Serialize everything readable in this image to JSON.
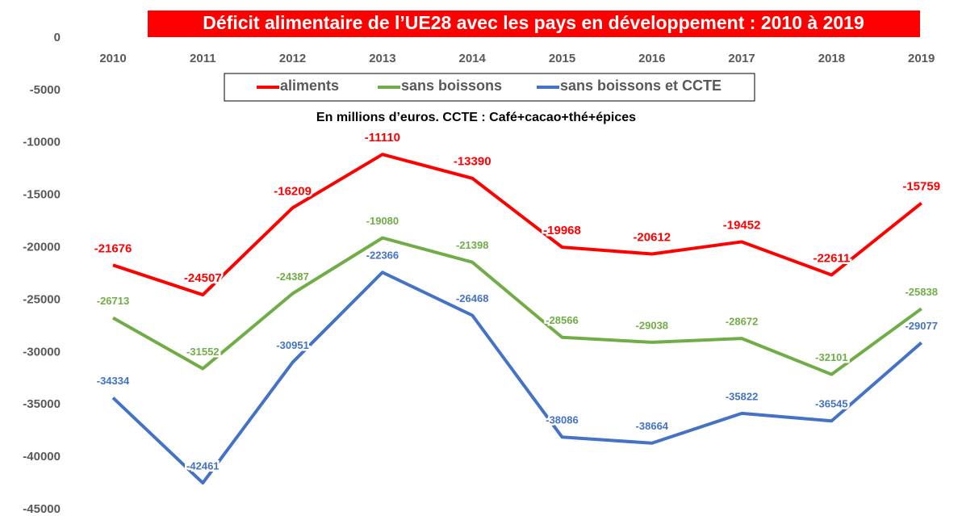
{
  "chart_data": {
    "type": "line",
    "title": "Déficit alimentaire de l’UE28 avec les pays en développement : 2010 à 2019",
    "subtitle": "En millions d’euros. CCTE : Café+cacao+thé+épices",
    "categories": [
      "2010",
      "2011",
      "2012",
      "2013",
      "2014",
      "2015",
      "2016",
      "2017",
      "2018",
      "2019"
    ],
    "series": [
      {
        "name": "aliments",
        "color": "#ff0000",
        "values": [
          -21676,
          -24507,
          -16209,
          -11110,
          -13390,
          -19968,
          -20612,
          -19452,
          -22611,
          -15759
        ]
      },
      {
        "name": "sans boissons",
        "color": "#70ad47",
        "values": [
          -26713,
          -31552,
          -24387,
          -19080,
          -21398,
          -28566,
          -29038,
          -28672,
          -32101,
          -25838
        ]
      },
      {
        "name": "sans boissons et CCTE",
        "color": "#4472c4",
        "values": [
          -34334,
          -42461,
          -30951,
          -22366,
          -26468,
          -38086,
          -38664,
          -35822,
          -36545,
          -29077
        ]
      }
    ],
    "ylim": [
      -45000,
      0
    ],
    "yticks": [
      0,
      -5000,
      -10000,
      -15000,
      -20000,
      -25000,
      -30000,
      -35000,
      -40000,
      -45000
    ],
    "legend": "top"
  }
}
